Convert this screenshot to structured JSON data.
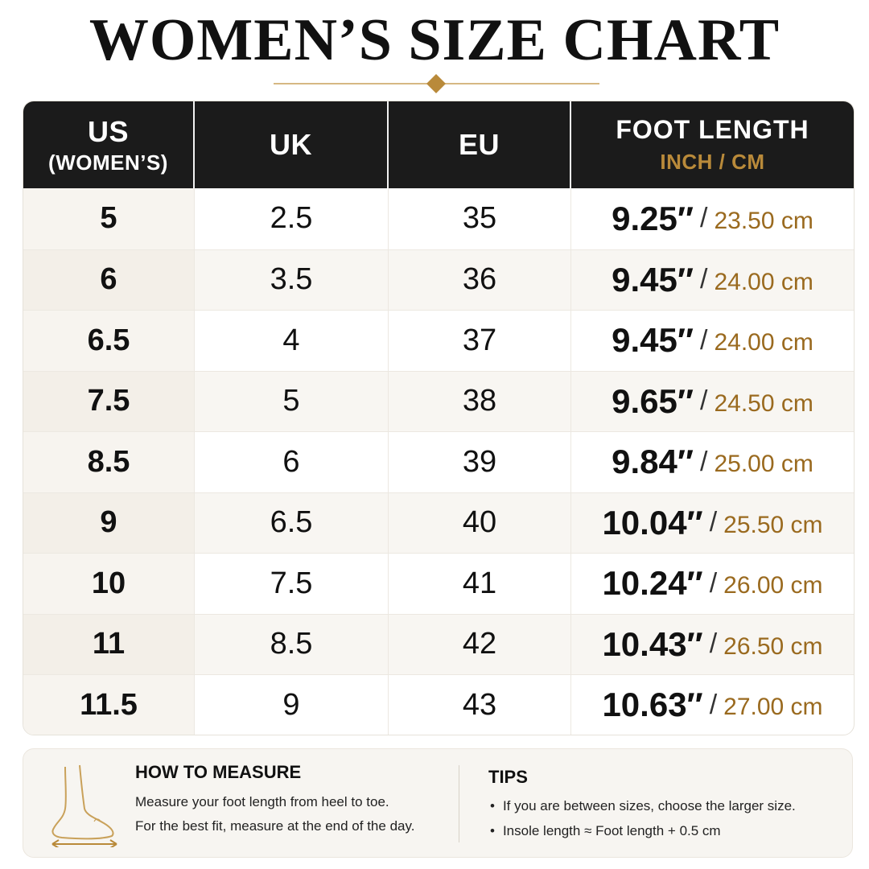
{
  "title": "WOMEN’S SIZE CHART",
  "colors": {
    "header_bg": "#1b1b1b",
    "accent_gold": "#b98a3a",
    "cm_text": "#9a6a1f"
  },
  "table": {
    "headers": {
      "us": "US",
      "us_sub": "(WOMEN’S)",
      "uk": "UK",
      "eu": "EU",
      "foot": "FOOT LENGTH",
      "foot_sub": "INCH / CM"
    },
    "rows": [
      {
        "us": "5",
        "uk": "2.5",
        "eu": "35",
        "inch": "9.25″",
        "cm": "23.50 cm"
      },
      {
        "us": "6",
        "uk": "3.5",
        "eu": "36",
        "inch": "9.45″",
        "cm": "24.00 cm"
      },
      {
        "us": "6.5",
        "uk": "4",
        "eu": "37",
        "inch": "9.45″",
        "cm": "24.00 cm"
      },
      {
        "us": "7.5",
        "uk": "5",
        "eu": "38",
        "inch": "9.65″",
        "cm": "24.50 cm"
      },
      {
        "us": "8.5",
        "uk": "6",
        "eu": "39",
        "inch": "9.84″",
        "cm": "25.00 cm"
      },
      {
        "us": "9",
        "uk": "6.5",
        "eu": "40",
        "inch": "10.04″",
        "cm": "25.50 cm"
      },
      {
        "us": "10",
        "uk": "7.5",
        "eu": "41",
        "inch": "10.24″",
        "cm": "26.00 cm"
      },
      {
        "us": "11",
        "uk": "8.5",
        "eu": "42",
        "inch": "10.43″",
        "cm": "26.50 cm"
      },
      {
        "us": "11.5",
        "uk": "9",
        "eu": "43",
        "inch": "10.63″",
        "cm": "27.00 cm"
      }
    ],
    "slash": "/"
  },
  "measure": {
    "title": "HOW TO MEASURE",
    "line1": "Measure your foot length from heel to toe.",
    "line2": "For the best fit, measure at the end of the day.",
    "icon": "foot-measure-icon"
  },
  "tips": {
    "title": "TIPS",
    "bullet": "•",
    "items": [
      "If you are between sizes, choose the larger size.",
      "Insole length ≈ Foot length + 0.5 cm"
    ]
  }
}
